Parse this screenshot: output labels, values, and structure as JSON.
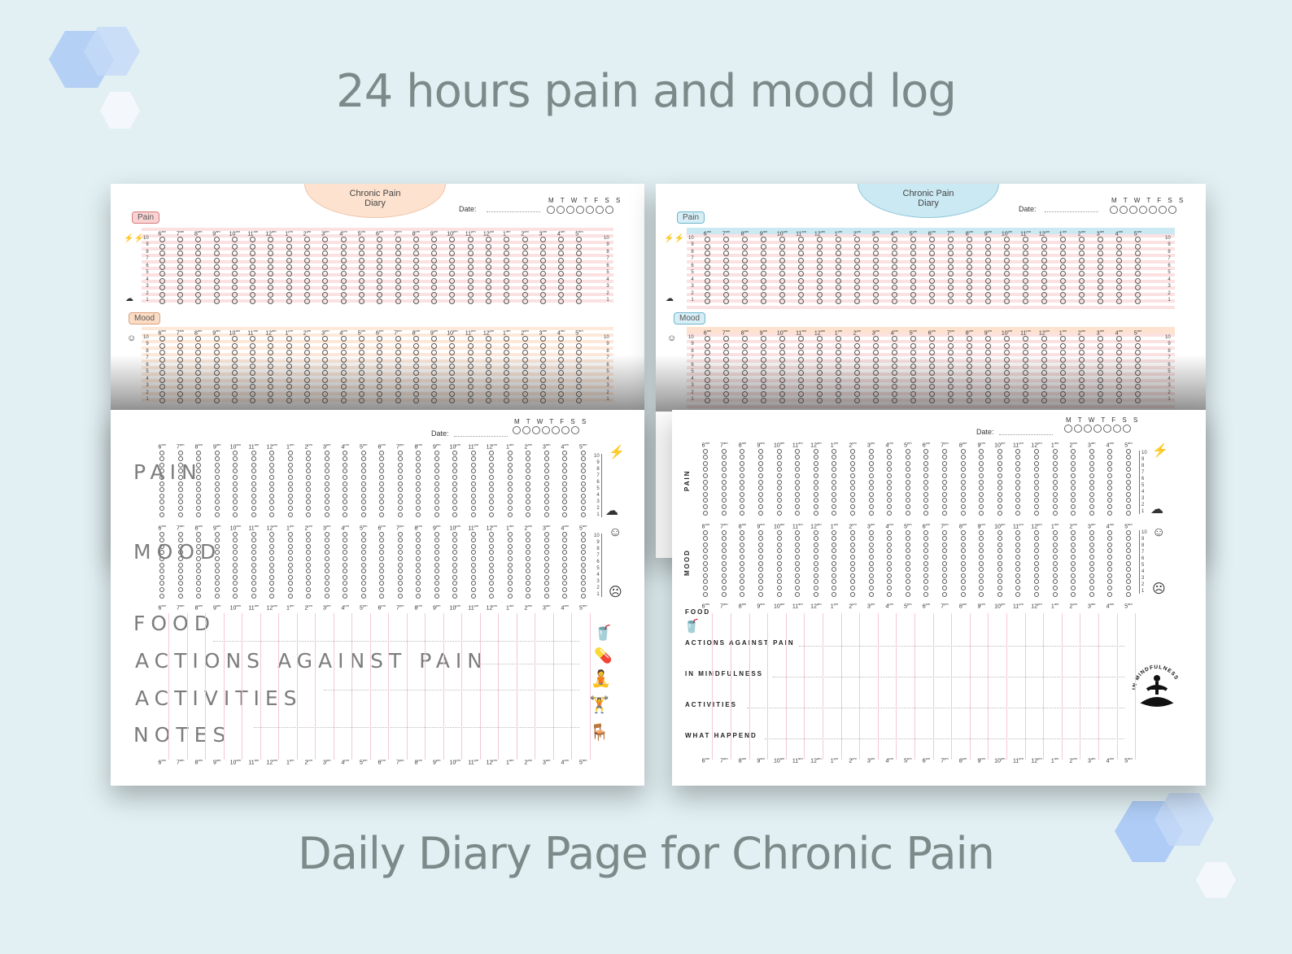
{
  "header": {
    "title": "24 hours pain and mood log",
    "subtitle": "Daily Diary Page for Chronic Pain"
  },
  "diary": {
    "oval_title": "Chronic Pain Diary",
    "date_label": "Date:",
    "weekdays": "M T W T F S S",
    "pain_pill": "Pain",
    "mood_pill": "Mood",
    "hours": [
      {
        "n": "6",
        "s": "am"
      },
      {
        "n": "7",
        "s": "am"
      },
      {
        "n": "8",
        "s": "am"
      },
      {
        "n": "9",
        "s": "am"
      },
      {
        "n": "10",
        "s": "am"
      },
      {
        "n": "11",
        "s": "am"
      },
      {
        "n": "12",
        "s": "am"
      },
      {
        "n": "1",
        "s": "pm"
      },
      {
        "n": "2",
        "s": "pm"
      },
      {
        "n": "3",
        "s": "pm"
      },
      {
        "n": "4",
        "s": "pm"
      },
      {
        "n": "5",
        "s": "pm"
      },
      {
        "n": "6",
        "s": "pm"
      },
      {
        "n": "7",
        "s": "pm"
      },
      {
        "n": "8",
        "s": "pm"
      },
      {
        "n": "9",
        "s": "pm"
      },
      {
        "n": "10",
        "s": "pm"
      },
      {
        "n": "11",
        "s": "pm"
      },
      {
        "n": "12",
        "s": "pm"
      },
      {
        "n": "1",
        "s": "am"
      },
      {
        "n": "2",
        "s": "am"
      },
      {
        "n": "3",
        "s": "am"
      },
      {
        "n": "4",
        "s": "am"
      },
      {
        "n": "5",
        "s": "am"
      }
    ],
    "scale": [
      "10",
      "9",
      "8",
      "7",
      "6",
      "5",
      "4",
      "3",
      "2",
      "1"
    ]
  },
  "page_left_bottom": {
    "labels": [
      "PAIN",
      "MOOD",
      "FOOD",
      "ACTIONS AGAINST PAIN",
      "ACTIVITIES",
      "NOTES"
    ]
  },
  "page_right_bottom": {
    "vertical_pain": "PAIN",
    "vertical_mood": "MOOD",
    "labels": [
      "FOOD",
      "ACTIONS AGAINST PAIN",
      "IN MINDFULNESS",
      "ACTIVITIES",
      "WHAT HAPPEND"
    ],
    "mindfulness_logo": "IN MINDFULNESS"
  },
  "colors": {
    "background": "#e2f0f3",
    "pink_accent": "#f7c9c9",
    "peach_accent": "#fbdcc4",
    "blue_accent": "#bfe3ef",
    "title_gray": "#7d8a8a"
  }
}
